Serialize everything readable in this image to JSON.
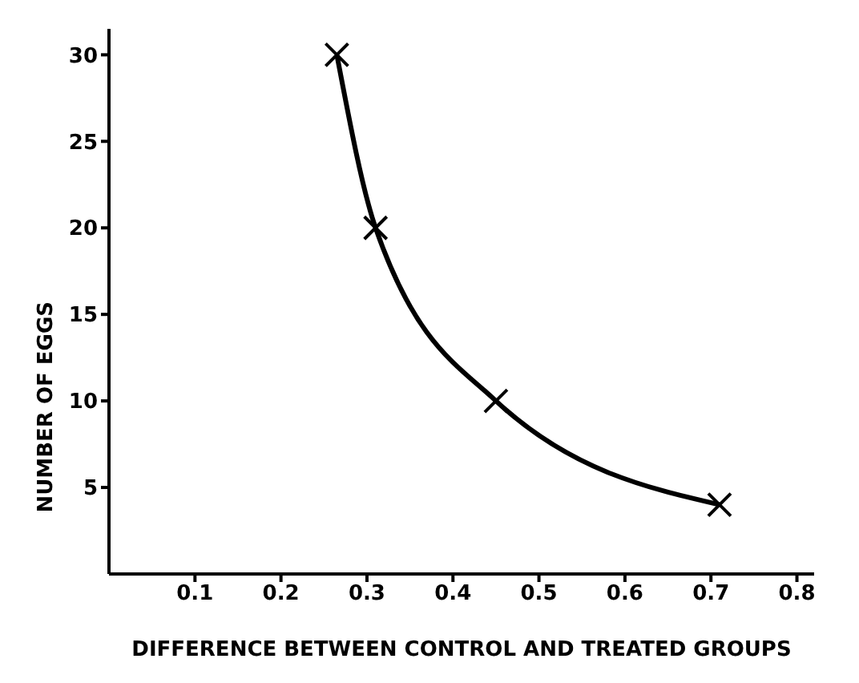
{
  "chart_data": {
    "type": "line",
    "xlabel": "DIFFERENCE BETWEEN CONTROL AND TREATED GROUPS",
    "ylabel": "NUMBER OF EGGS",
    "x": [
      0.265,
      0.31,
      0.45,
      0.71
    ],
    "series": [
      {
        "color": "#000000",
        "values": [
          30,
          20,
          10,
          4
        ]
      }
    ],
    "xlim": [
      0,
      0.82
    ],
    "xticks": [
      0.1,
      0.2,
      0.3,
      0.4,
      0.5,
      0.6,
      0.7,
      0.8
    ],
    "ylim": [
      0,
      31.5
    ],
    "yticks": [
      5,
      10,
      15,
      20,
      25,
      30
    ],
    "grid": false,
    "legend": false,
    "marker": "cross",
    "line_style": "solid"
  }
}
